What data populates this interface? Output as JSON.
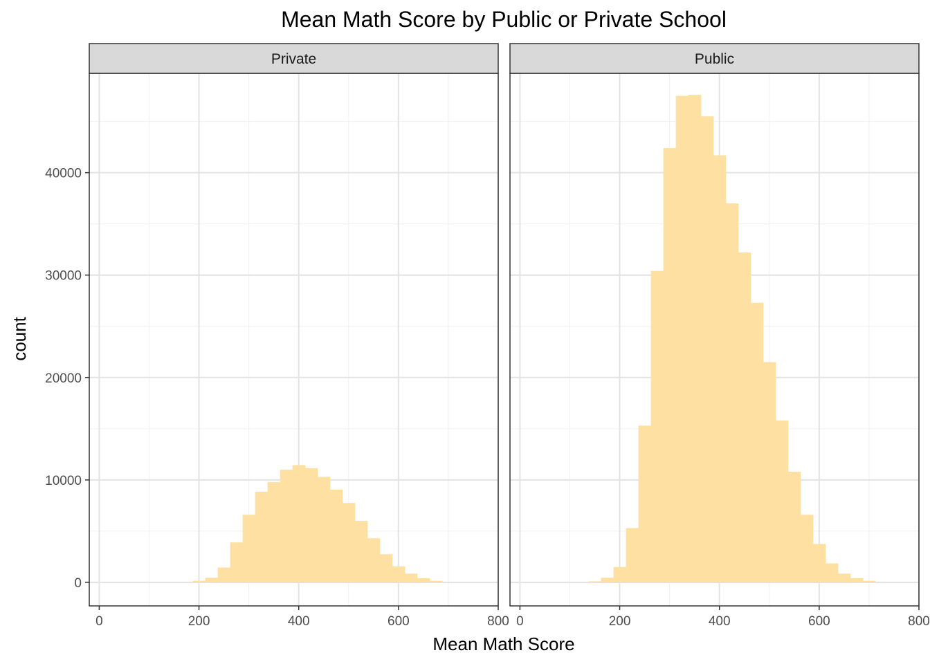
{
  "chart_data": {
    "type": "bar",
    "title": "Mean Math Score by Public or Private School",
    "xlabel": "Mean Math Score",
    "ylabel": "count",
    "xlim": [
      -20,
      800
    ],
    "ylim": [
      -2300,
      49700
    ],
    "x_ticks": [
      0,
      200,
      400,
      600,
      800
    ],
    "y_ticks": [
      0,
      10000,
      20000,
      30000,
      40000
    ],
    "bin_width": 25,
    "grid": true,
    "bar_color": "#fde0a2",
    "panel_header_fill": "#d9d9d9",
    "facets": [
      {
        "label": "Private",
        "bins": [
          {
            "x": 200,
            "y": 150
          },
          {
            "x": 225,
            "y": 450
          },
          {
            "x": 250,
            "y": 1450
          },
          {
            "x": 275,
            "y": 3900
          },
          {
            "x": 300,
            "y": 6600
          },
          {
            "x": 325,
            "y": 8850
          },
          {
            "x": 350,
            "y": 9800
          },
          {
            "x": 375,
            "y": 11000
          },
          {
            "x": 400,
            "y": 11450
          },
          {
            "x": 425,
            "y": 11150
          },
          {
            "x": 450,
            "y": 10300
          },
          {
            "x": 475,
            "y": 9050
          },
          {
            "x": 500,
            "y": 7750
          },
          {
            "x": 525,
            "y": 6000
          },
          {
            "x": 550,
            "y": 4300
          },
          {
            "x": 575,
            "y": 2750
          },
          {
            "x": 600,
            "y": 1550
          },
          {
            "x": 625,
            "y": 850
          },
          {
            "x": 650,
            "y": 400
          },
          {
            "x": 675,
            "y": 150
          }
        ]
      },
      {
        "label": "Public",
        "bins": [
          {
            "x": 150,
            "y": 100
          },
          {
            "x": 175,
            "y": 450
          },
          {
            "x": 200,
            "y": 1500
          },
          {
            "x": 225,
            "y": 5300
          },
          {
            "x": 250,
            "y": 15300
          },
          {
            "x": 275,
            "y": 30400
          },
          {
            "x": 300,
            "y": 42400
          },
          {
            "x": 325,
            "y": 47500
          },
          {
            "x": 350,
            "y": 47600
          },
          {
            "x": 375,
            "y": 45500
          },
          {
            "x": 400,
            "y": 41700
          },
          {
            "x": 425,
            "y": 37000
          },
          {
            "x": 450,
            "y": 32200
          },
          {
            "x": 475,
            "y": 27300
          },
          {
            "x": 500,
            "y": 21500
          },
          {
            "x": 525,
            "y": 15800
          },
          {
            "x": 550,
            "y": 10800
          },
          {
            "x": 575,
            "y": 6600
          },
          {
            "x": 600,
            "y": 3750
          },
          {
            "x": 625,
            "y": 1850
          },
          {
            "x": 650,
            "y": 850
          },
          {
            "x": 675,
            "y": 400
          },
          {
            "x": 700,
            "y": 150
          }
        ]
      }
    ]
  }
}
